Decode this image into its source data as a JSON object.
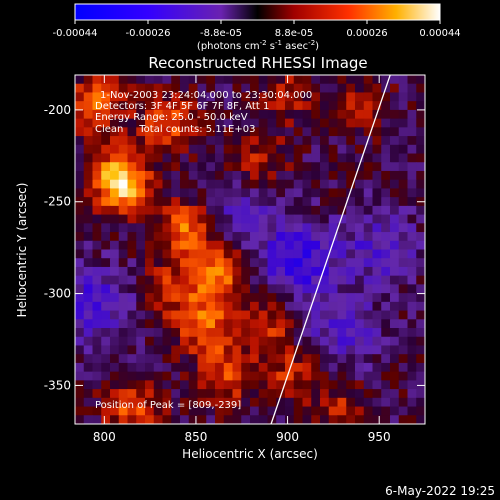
{
  "chart_data": {
    "type": "heatmap",
    "title": "Reconstructed RHESSI Image",
    "xlabel": "Heliocentric X (arcsec)",
    "ylabel": "Heliocentric Y (arcsec)",
    "xlim": [
      784,
      975
    ],
    "ylim": [
      -371,
      -181
    ],
    "xticks": [
      800,
      850,
      900,
      950
    ],
    "yticks": [
      -200,
      -250,
      -300,
      -350
    ],
    "colorbar": {
      "range": [
        -0.00044,
        0.00044
      ],
      "tick_labels": [
        "-0.00044",
        "-0.00026",
        "-8.8e-05",
        "8.8e-05",
        "0.00026",
        "0.00044"
      ],
      "units_prefix": "(photons cm",
      "units_exp1": "-2",
      "units_mid": " s",
      "units_exp2": "-1",
      "units_mid2": " asec",
      "units_exp3": "-2",
      "units_suffix": ")"
    },
    "annotations": [
      "1-Nov-2003 23:24:04.000 to 23:30:04.000",
      "Detectors: 3F 4F 5F 6F 7F 8F, Att 1",
      "Energy Range: 25.0 - 50.0 keV",
      "Clean     Total counts: 5.11E+03"
    ],
    "peak_label": "Position of Peak = [809,-239]",
    "peak": [
      809,
      -239
    ],
    "limb_line": [
      [
        891,
        -371
      ],
      [
        956,
        -181
      ]
    ],
    "sources": [
      {
        "x": 809,
        "y": -239,
        "amp": 1.0
      },
      {
        "x": 795,
        "y": -197,
        "amp": 0.6
      },
      {
        "x": 835,
        "y": -207,
        "amp": 0.5
      },
      {
        "x": 845,
        "y": -265,
        "amp": 0.6
      },
      {
        "x": 862,
        "y": -290,
        "amp": 0.62
      },
      {
        "x": 855,
        "y": -318,
        "amp": 0.55
      },
      {
        "x": 866,
        "y": -345,
        "amp": 0.45
      },
      {
        "x": 815,
        "y": -362,
        "amp": 0.5
      },
      {
        "x": 836,
        "y": -298,
        "amp": 0.35
      },
      {
        "x": 884,
        "y": -228,
        "amp": 0.35
      },
      {
        "x": 888,
        "y": -318,
        "amp": 0.4
      },
      {
        "x": 900,
        "y": -192,
        "amp": 0.3
      },
      {
        "x": 902,
        "y": -345,
        "amp": 0.35
      },
      {
        "x": 940,
        "y": -198,
        "amp": 0.28
      },
      {
        "x": 930,
        "y": -362,
        "amp": 0.3
      }
    ],
    "sinks": [
      {
        "x": 905,
        "y": -282,
        "amp": 0.55
      },
      {
        "x": 795,
        "y": -305,
        "amp": 0.4
      },
      {
        "x": 950,
        "y": -275,
        "amp": 0.35
      },
      {
        "x": 930,
        "y": -320,
        "amp": 0.35
      },
      {
        "x": 875,
        "y": -255,
        "amp": 0.3
      }
    ]
  },
  "footer": {
    "date": "6-May-2022 19:25"
  }
}
